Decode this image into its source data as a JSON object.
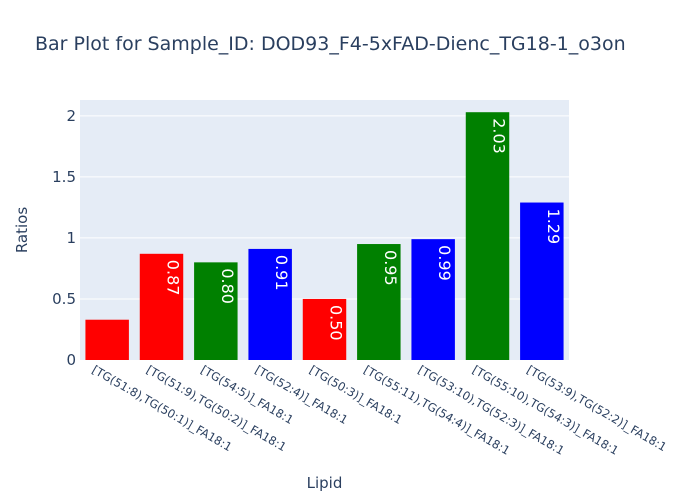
{
  "chart_data": {
    "type": "bar",
    "title": "Bar Plot for Sample_ID: DOD93_F4-5xFAD-Dienc_TG18-1_o3on",
    "xlabel": "Lipid",
    "ylabel": "Ratios",
    "ylim": [
      0,
      2.13
    ],
    "yticks": [
      "0",
      "0.5",
      "1",
      "1.5",
      "2"
    ],
    "grid": true,
    "legend": "none",
    "categories": [
      "[TG(51:8),TG(50:1)]_FA18:1",
      "[TG(51:9),TG(50:2)]_FA18:1",
      "[TG(54:5)]_FA18:1",
      "[TG(52:4)]_FA18:1",
      "[TG(50:3)]_FA18:1",
      "[TG(55:11),TG(54:4)]_FA18:1",
      "[TG(53:10),TG(52:3)]_FA18:1",
      "[TG(55:10),TG(54:3)]_FA18:1",
      "[TG(53:9),TG(52:2)]_FA18:1"
    ],
    "values": [
      0.33,
      0.87,
      0.8,
      0.91,
      0.5,
      0.95,
      0.99,
      2.03,
      1.29
    ],
    "value_labels": [
      "",
      "0.87",
      "0.80",
      "0.91",
      "0.50",
      "0.95",
      "0.99",
      "2.03",
      "1.29"
    ],
    "colors": [
      "#ff0000",
      "#ff0000",
      "#008000",
      "#0000ff",
      "#ff0000",
      "#008000",
      "#0000ff",
      "#008000",
      "#0000ff"
    ],
    "plot_background": "#e5ecf6",
    "grid_color": "#ffffff",
    "text_color": "#2a3f5f"
  }
}
